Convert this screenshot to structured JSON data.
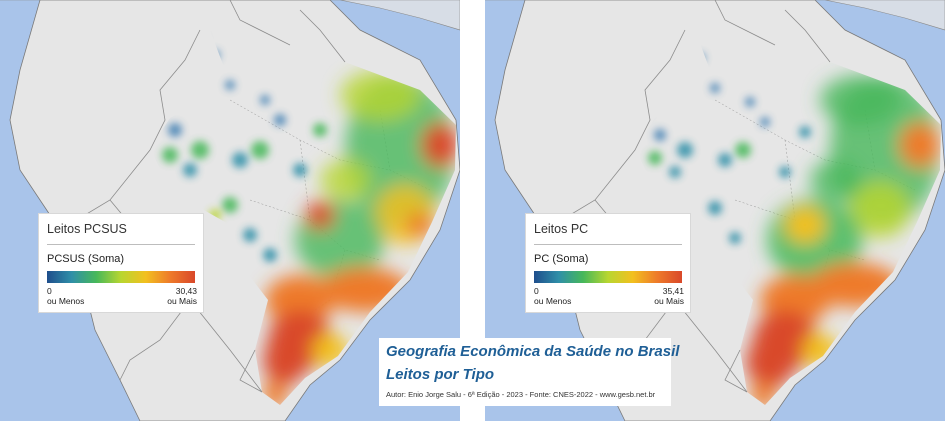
{
  "maps": [
    {
      "legend": {
        "title": "Leitos PCSUS",
        "measure": "PCSUS (Soma)",
        "min_value": "0",
        "min_label": "ou Menos",
        "max_value": "30,43",
        "max_label": "ou Mais"
      }
    },
    {
      "legend": {
        "title": "Leitos PC",
        "measure": "PC (Soma)",
        "min_value": "0",
        "min_label": "ou Menos",
        "max_value": "35,41",
        "max_label": "ou Mais"
      }
    }
  ],
  "title_box": {
    "line1": "Geografia Econômica da Saúde no Brasil",
    "line2": "Leitos por Tipo",
    "credit": "Autor: Enio Jorge Salu - 6ª Edição - 2023 - Fonte: CNES-2022 - www.gesb.net.br"
  },
  "colors": {
    "ocean": "#a9c4ea",
    "land": "#e5e5e5",
    "border": "#7a7a7a",
    "heat_low": "#1f4e8c",
    "heat_mid": "#47b85a",
    "heat_high": "#d9482a"
  }
}
